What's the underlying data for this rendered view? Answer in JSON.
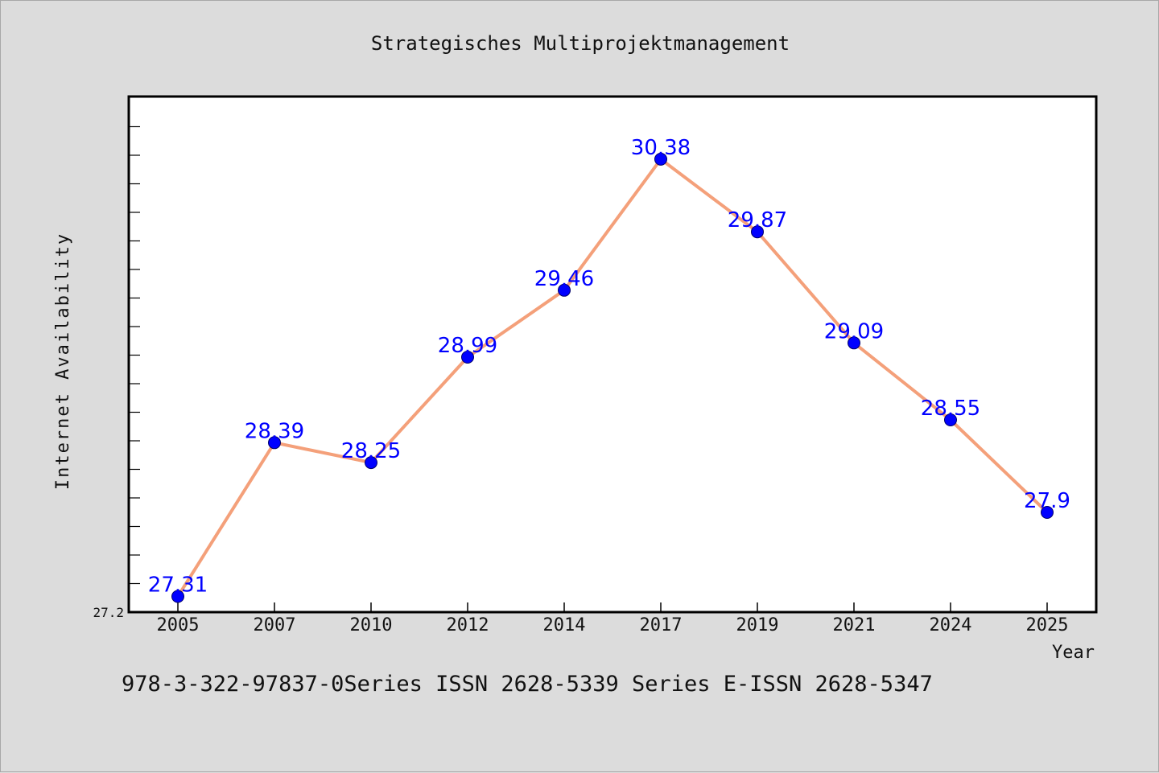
{
  "chart_data": {
    "type": "line",
    "title": "Strategisches Multiprojektmanagement",
    "xlabel": "Year",
    "ylabel": "Internet Availability",
    "categories": [
      "2005",
      "2007",
      "2010",
      "2012",
      "2014",
      "2017",
      "2019",
      "2021",
      "2024",
      "2025"
    ],
    "series": [
      {
        "values": [
          27.31,
          28.39,
          28.25,
          28.99,
          29.46,
          30.38,
          29.87,
          29.09,
          28.55,
          27.9
        ],
        "line_color": "#f4a07a",
        "marker_color": "#0000ff"
      }
    ],
    "data_labels": [
      "27.31",
      "28.39",
      "28.25",
      "28.99",
      "29.46",
      "30.38",
      "29.87",
      "29.09",
      "28.55",
      "27.9"
    ],
    "y_tick_labels": [
      "27.2"
    ],
    "ylim": [
      27.2,
      30.82
    ],
    "grid": false,
    "label_color": "#0000ff"
  },
  "footer": {
    "text": "978-3-322-97837-0Series ISSN 2628-5339 Series E-ISSN 2628-5347"
  }
}
